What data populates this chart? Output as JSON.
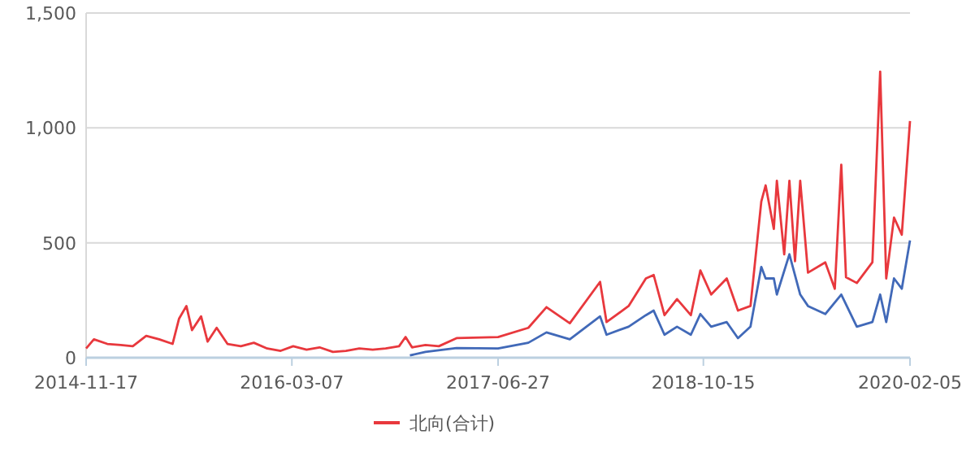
{
  "chart_data": {
    "type": "line",
    "xlim": [
      "2014-11-17",
      "2020-02-05"
    ],
    "xticks": [
      "2014-11-17",
      "2016-03-07",
      "2017-06-27",
      "2018-10-15",
      "2020-02-05"
    ],
    "ylim": [
      0,
      1500
    ],
    "yticks": [
      {
        "value": 0,
        "label": "0"
      },
      {
        "value": 500,
        "label": "500"
      },
      {
        "value": 1000,
        "label": "1,000"
      },
      {
        "value": 1500,
        "label": "1,500"
      }
    ],
    "grid": "y",
    "legend": "bottom",
    "marker": "none",
    "line_style": "solid",
    "series": [
      {
        "name": "北向(合计)",
        "color": "#e8383d",
        "x": [
          "2014-11-17",
          "2014-12-05",
          "2015-01-05",
          "2015-02-05",
          "2015-03-05",
          "2015-04-05",
          "2015-05-05",
          "2015-06-05",
          "2015-06-20",
          "2015-07-07",
          "2015-07-20",
          "2015-08-10",
          "2015-08-25",
          "2015-09-15",
          "2015-10-10",
          "2015-11-10",
          "2015-12-10",
          "2016-01-10",
          "2016-02-10",
          "2016-03-10",
          "2016-04-10",
          "2016-05-10",
          "2016-06-10",
          "2016-07-10",
          "2016-08-10",
          "2016-09-10",
          "2016-10-10",
          "2016-11-10",
          "2016-11-25",
          "2016-12-10",
          "2017-01-10",
          "2017-02-10",
          "2017-03-23",
          "2017-06-27",
          "2017-09-05",
          "2017-10-17",
          "2017-12-10",
          "2018-02-18",
          "2018-03-05",
          "2018-04-25",
          "2018-06-04",
          "2018-06-22",
          "2018-07-17",
          "2018-08-15",
          "2018-09-16",
          "2018-10-08",
          "2018-11-02",
          "2018-12-08",
          "2019-01-03",
          "2019-02-01",
          "2019-02-26",
          "2019-03-08",
          "2019-03-27",
          "2019-04-03",
          "2019-04-20",
          "2019-05-02",
          "2019-05-15",
          "2019-05-27",
          "2019-06-14",
          "2019-07-24",
          "2019-08-15",
          "2019-08-30",
          "2019-09-10",
          "2019-10-05",
          "2019-11-10",
          "2019-11-28",
          "2019-12-12",
          "2019-12-30",
          "2020-01-17",
          "2020-02-05"
        ],
        "values": [
          40,
          80,
          60,
          55,
          50,
          95,
          80,
          60,
          170,
          225,
          120,
          180,
          70,
          130,
          60,
          50,
          65,
          40,
          30,
          50,
          35,
          45,
          25,
          30,
          40,
          35,
          40,
          50,
          90,
          45,
          55,
          50,
          85,
          90,
          130,
          220,
          150,
          330,
          155,
          225,
          345,
          360,
          185,
          255,
          185,
          380,
          275,
          345,
          205,
          225,
          680,
          750,
          560,
          770,
          450,
          770,
          420,
          770,
          370,
          415,
          300,
          840,
          350,
          325,
          415,
          1245,
          345,
          610,
          535,
          1030
        ]
      },
      {
        "color": "#4169b8",
        "x": [
          "2016-12-05",
          "2017-01-10",
          "2017-03-23",
          "2017-06-27",
          "2017-09-05",
          "2017-10-17",
          "2017-12-10",
          "2018-02-18",
          "2018-03-05",
          "2018-04-25",
          "2018-06-04",
          "2018-06-22",
          "2018-07-17",
          "2018-08-15",
          "2018-09-16",
          "2018-10-08",
          "2018-11-02",
          "2018-12-08",
          "2019-01-03",
          "2019-02-01",
          "2019-02-26",
          "2019-03-08",
          "2019-03-27",
          "2019-04-03",
          "2019-05-02",
          "2019-05-27",
          "2019-06-14",
          "2019-07-24",
          "2019-08-30",
          "2019-10-05",
          "2019-11-10",
          "2019-11-28",
          "2019-12-12",
          "2019-12-30",
          "2020-01-17",
          "2020-02-05"
        ],
        "values": [
          10,
          25,
          42,
          40,
          65,
          110,
          80,
          180,
          100,
          135,
          185,
          205,
          100,
          135,
          100,
          190,
          135,
          155,
          85,
          135,
          395,
          345,
          345,
          275,
          450,
          275,
          225,
          190,
          275,
          135,
          155,
          275,
          155,
          345,
          300,
          510
        ]
      }
    ]
  }
}
